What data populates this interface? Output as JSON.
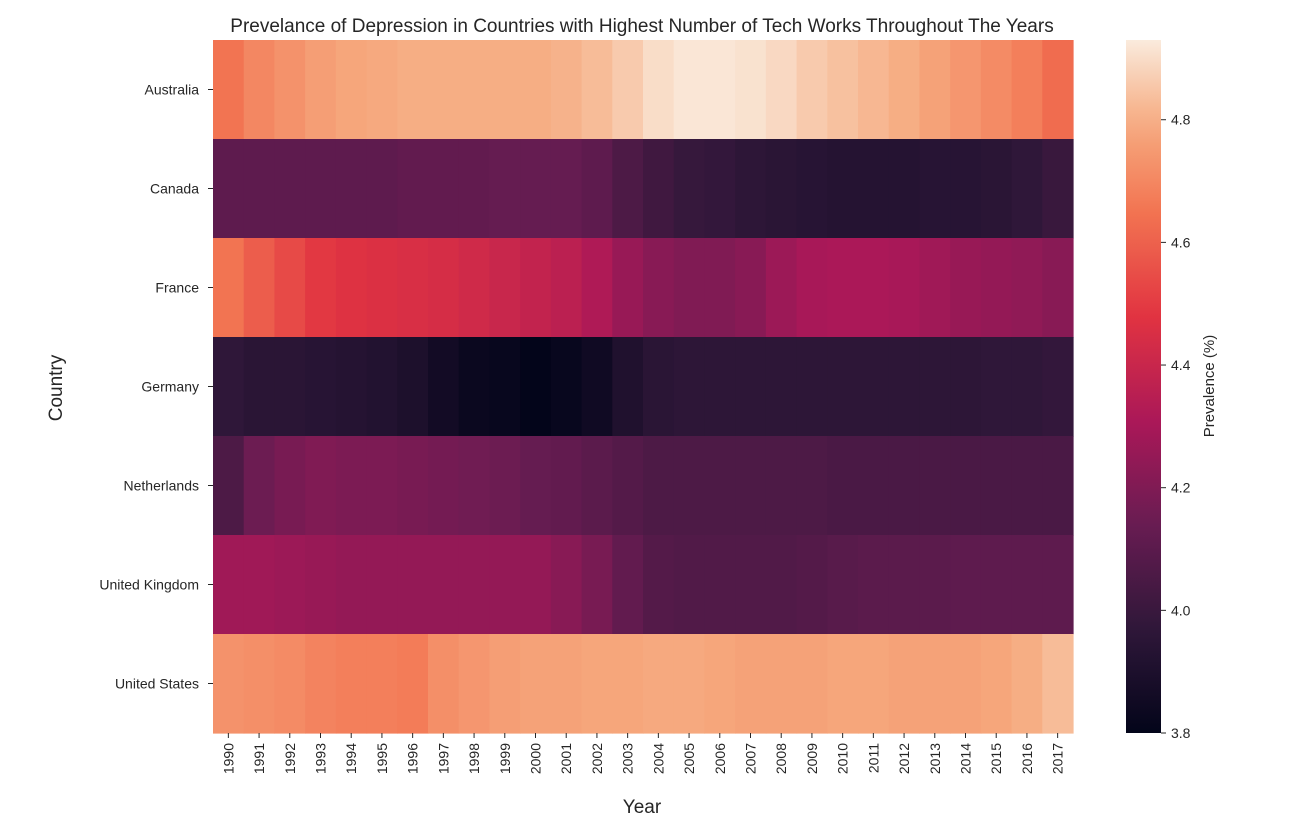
{
  "chart_data": {
    "type": "heatmap",
    "title": "Prevelance of Depression in Countries with Highest Number of Tech Works Throughout The Years",
    "xlabel": "Year",
    "ylabel": "Country",
    "colorbar_label": "Prevalence (%)",
    "color_range": [
      3.8,
      4.93
    ],
    "colorbar_ticks": [
      "3.8",
      "4.0",
      "4.2",
      "4.4",
      "4.6",
      "4.8"
    ],
    "colormap": "rocket",
    "years": [
      "1990",
      "1991",
      "1992",
      "1993",
      "1994",
      "1995",
      "1996",
      "1997",
      "1998",
      "1999",
      "2000",
      "2001",
      "2002",
      "2003",
      "2004",
      "2005",
      "2006",
      "2007",
      "2008",
      "2009",
      "2010",
      "2011",
      "2012",
      "2013",
      "2014",
      "2015",
      "2016",
      "2017"
    ],
    "countries": [
      "Australia",
      "Canada",
      "France",
      "Germany",
      "Netherlands",
      "United Kingdom",
      "United States"
    ],
    "values": [
      [
        4.65,
        4.7,
        4.73,
        4.76,
        4.78,
        4.79,
        4.8,
        4.8,
        4.8,
        4.8,
        4.8,
        4.81,
        4.83,
        4.86,
        4.9,
        4.92,
        4.92,
        4.91,
        4.89,
        4.86,
        4.84,
        4.82,
        4.8,
        4.77,
        4.74,
        4.71,
        4.68,
        4.63
      ],
      [
        4.11,
        4.11,
        4.11,
        4.11,
        4.11,
        4.11,
        4.12,
        4.12,
        4.12,
        4.13,
        4.13,
        4.13,
        4.11,
        4.06,
        4.02,
        3.99,
        3.98,
        3.96,
        3.95,
        3.94,
        3.93,
        3.93,
        3.93,
        3.94,
        3.94,
        3.95,
        3.97,
        4.0
      ],
      [
        4.65,
        4.59,
        4.54,
        4.49,
        4.47,
        4.46,
        4.45,
        4.44,
        4.42,
        4.4,
        4.38,
        4.36,
        4.32,
        4.26,
        4.22,
        4.2,
        4.2,
        4.22,
        4.27,
        4.3,
        4.31,
        4.31,
        4.3,
        4.28,
        4.26,
        4.25,
        4.24,
        4.22
      ],
      [
        3.97,
        3.95,
        3.95,
        3.94,
        3.93,
        3.92,
        3.9,
        3.86,
        3.83,
        3.82,
        3.8,
        3.82,
        3.85,
        3.91,
        3.95,
        3.96,
        3.96,
        3.96,
        3.96,
        3.96,
        3.96,
        3.96,
        3.96,
        3.96,
        3.96,
        3.97,
        3.97,
        3.98
      ],
      [
        4.06,
        4.15,
        4.18,
        4.2,
        4.19,
        4.19,
        4.18,
        4.17,
        4.16,
        4.15,
        4.13,
        4.12,
        4.1,
        4.08,
        4.06,
        4.06,
        4.06,
        4.06,
        4.06,
        4.06,
        4.05,
        4.05,
        4.05,
        4.05,
        4.05,
        4.05,
        4.05,
        4.05
      ],
      [
        4.28,
        4.28,
        4.27,
        4.26,
        4.25,
        4.25,
        4.25,
        4.25,
        4.25,
        4.25,
        4.25,
        4.22,
        4.18,
        4.12,
        4.08,
        4.07,
        4.07,
        4.07,
        4.07,
        4.08,
        4.09,
        4.1,
        4.1,
        4.1,
        4.11,
        4.11,
        4.11,
        4.11
      ],
      [
        4.73,
        4.72,
        4.71,
        4.69,
        4.68,
        4.68,
        4.67,
        4.72,
        4.74,
        4.76,
        4.77,
        4.77,
        4.78,
        4.78,
        4.79,
        4.79,
        4.78,
        4.77,
        4.77,
        4.77,
        4.78,
        4.78,
        4.77,
        4.77,
        4.77,
        4.78,
        4.8,
        4.83
      ]
    ]
  }
}
